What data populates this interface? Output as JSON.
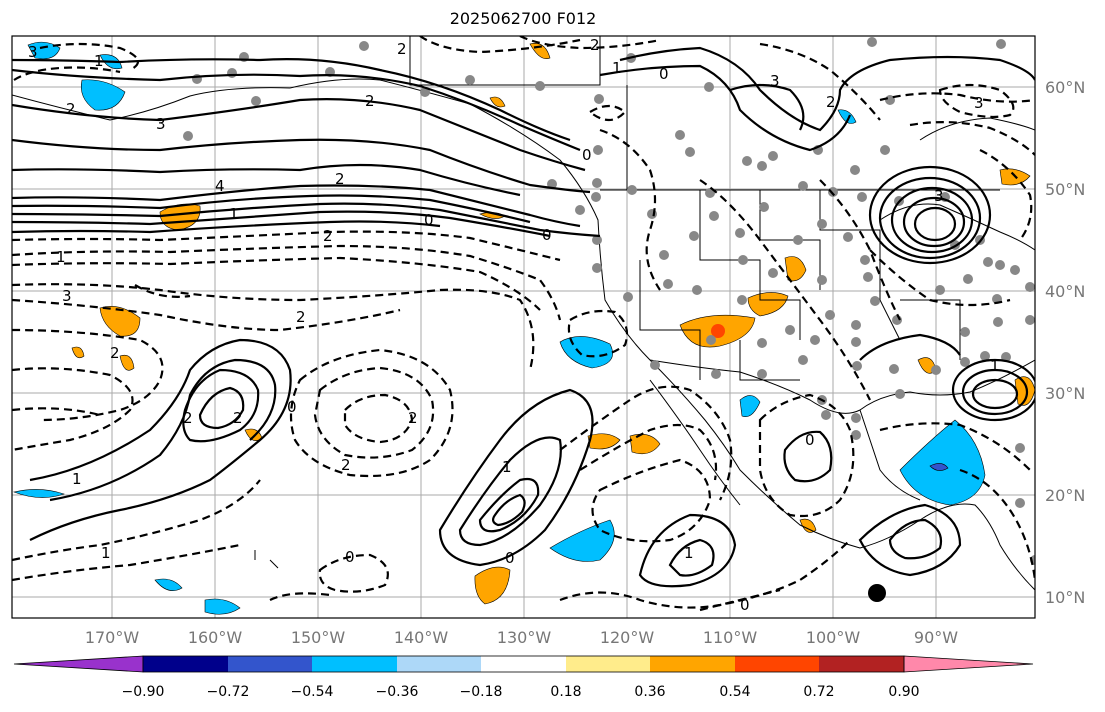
{
  "title": "2025062700 F012",
  "lon_ticks": [
    "170°W",
    "160°W",
    "150°W",
    "140°W",
    "130°W",
    "120°W",
    "110°W",
    "100°W",
    "90°W"
  ],
  "lat_ticks": [
    "60°N",
    "50°N",
    "40°N",
    "30°N",
    "20°N",
    "10°N"
  ],
  "colorbar": {
    "colors": [
      "#9932cc",
      "#00008b",
      "#3355cc",
      "#00bfff",
      "#add8f8",
      "#ffffff",
      "#ffec8b",
      "#ffa500",
      "#ff4500",
      "#b22222",
      "#ff88aa"
    ],
    "labels": [
      "−0.90",
      "−0.72",
      "−0.54",
      "−0.36",
      "−0.18",
      "0.18",
      "0.36",
      "0.54",
      "0.72",
      "0.90"
    ]
  },
  "contour_labels": [
    "3",
    "2",
    "1",
    "0",
    "3",
    "2",
    "1",
    "2",
    "2",
    "0",
    "3",
    "3",
    "4",
    "2",
    "1",
    "0",
    "2",
    "0",
    "3",
    "1",
    "2",
    "2",
    "2",
    "2",
    "0",
    "2",
    "1",
    "2",
    "1",
    "1",
    "0",
    "0",
    "1",
    "0",
    "2",
    "3",
    "1",
    "0"
  ]
}
